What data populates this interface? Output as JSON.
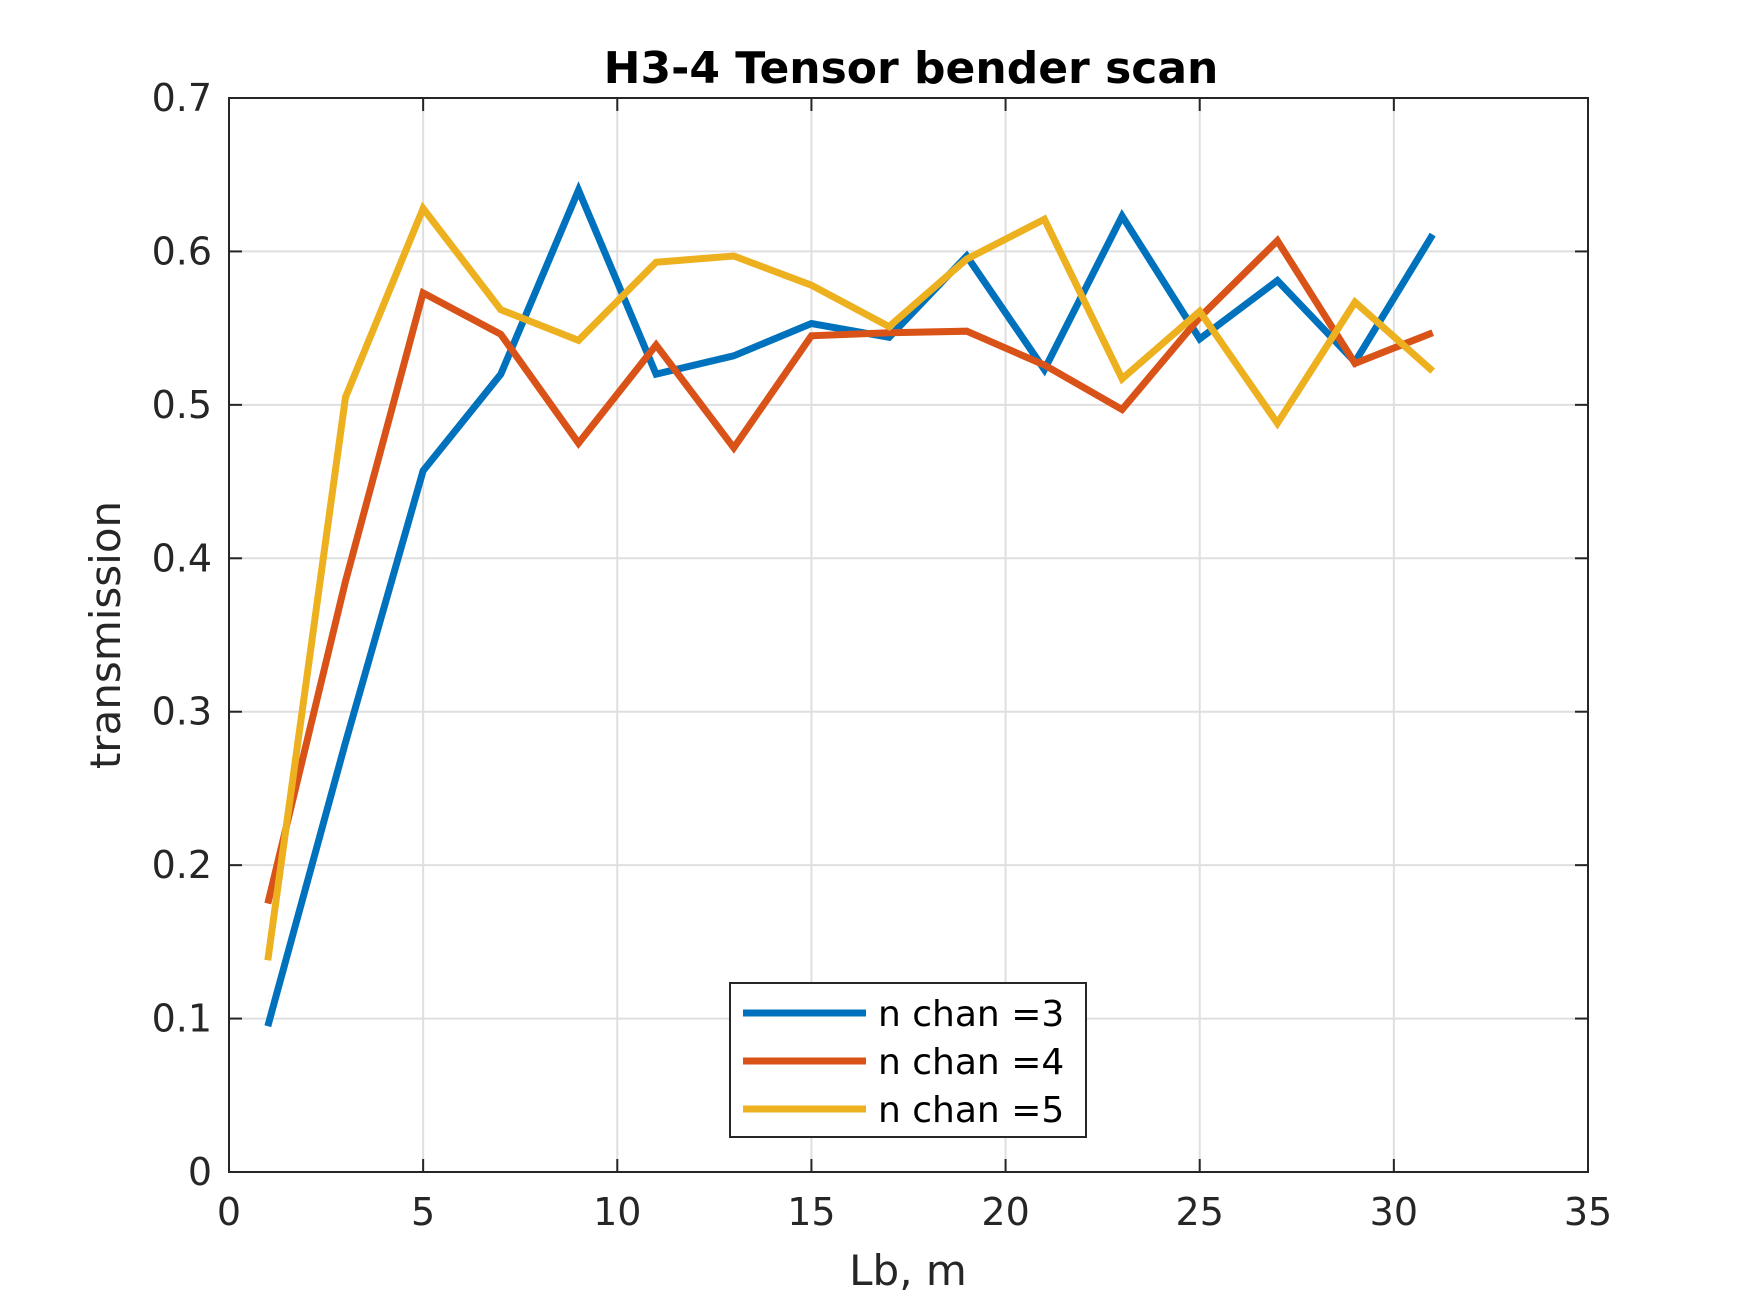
{
  "chart_data": {
    "type": "line",
    "title": "H3-4 Tensor bender scan",
    "xlabel": "Lb, m",
    "ylabel": "transmission",
    "xlim": [
      0,
      35
    ],
    "ylim": [
      0,
      0.7
    ],
    "x_ticks": [
      "0",
      "5",
      "10",
      "15",
      "20",
      "25",
      "30",
      "35"
    ],
    "x_tick_values": [
      0,
      5,
      10,
      15,
      20,
      25,
      30,
      35
    ],
    "y_ticks": [
      "0",
      "0.1",
      "0.2",
      "0.3",
      "0.4",
      "0.5",
      "0.6",
      "0.7"
    ],
    "y_tick_values": [
      0,
      0.1,
      0.2,
      0.3,
      0.4,
      0.5,
      0.6,
      0.7
    ],
    "grid": true,
    "legend_position": "bottom-center",
    "x": [
      1,
      3,
      5,
      7,
      9,
      11,
      13,
      15,
      17,
      19,
      21,
      23,
      25,
      27,
      29,
      31
    ],
    "series": [
      {
        "name": "n chan =3",
        "color": "#0072BD",
        "values": [
          0.095,
          0.28,
          0.457,
          0.52,
          0.64,
          0.52,
          0.532,
          0.553,
          0.544,
          0.597,
          0.523,
          0.623,
          0.543,
          0.581,
          0.528,
          0.611
        ]
      },
      {
        "name": "n chan =4",
        "color": "#D95319",
        "values": [
          0.175,
          0.385,
          0.573,
          0.546,
          0.475,
          0.539,
          0.472,
          0.545,
          0.547,
          0.548,
          0.526,
          0.497,
          0.557,
          0.607,
          0.527,
          0.547
        ]
      },
      {
        "name": "n chan =5",
        "color": "#EDB120",
        "values": [
          0.138,
          0.505,
          0.628,
          0.562,
          0.542,
          0.593,
          0.597,
          0.578,
          0.551,
          0.595,
          0.621,
          0.517,
          0.561,
          0.488,
          0.567,
          0.522
        ]
      }
    ]
  }
}
